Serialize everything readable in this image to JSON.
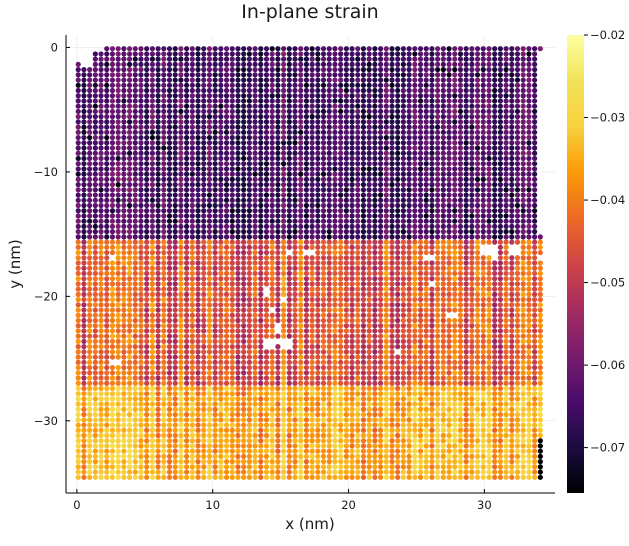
{
  "chart_data": {
    "type": "scatter",
    "title": "In-plane strain",
    "xlabel": "x (nm)",
    "ylabel": "y (nm)",
    "xlim": [
      -0.8,
      35.2
    ],
    "ylim": [
      -35.8,
      1.0
    ],
    "xticks": [
      0,
      10,
      20,
      30
    ],
    "yticks": [
      0,
      -10,
      -20,
      -30
    ],
    "xtick_labels": [
      "0",
      "10",
      "20",
      "30"
    ],
    "ytick_labels": [
      "0",
      "−10",
      "−20",
      "−30"
    ],
    "grid": true,
    "colormap": "inferno",
    "colorbar": {
      "range": [
        -0.0755,
        -0.02
      ],
      "ticks": [
        -0.07,
        -0.06,
        -0.05,
        -0.04,
        -0.03,
        -0.02
      ],
      "tick_labels": [
        "−0.07",
        "−0.06",
        "−0.05",
        "−0.04",
        "−0.03",
        "−0.02"
      ]
    },
    "point_grid": {
      "x_range": [
        0.1,
        34.2
      ],
      "y_range": [
        -34.7,
        -0.1
      ],
      "x_step": 0.42,
      "y_step": 0.42
    },
    "regions": [
      {
        "y_range": [
          -15.3,
          0
        ],
        "strain_typical": -0.065
      },
      {
        "y_range": [
          -27.0,
          -15.3
        ],
        "strain_typical": -0.045
      },
      {
        "y_range": [
          -35.0,
          -27.0
        ],
        "strain_typical": -0.035
      }
    ],
    "missing_points": [
      [
        2.6,
        -16.9
      ],
      [
        2.9,
        -25.2
      ],
      [
        13.9,
        -19.7
      ],
      [
        14.4,
        -21.2
      ],
      [
        14.7,
        -22.5
      ],
      [
        15.0,
        -23.7
      ],
      [
        15.5,
        -23.9
      ],
      [
        15.2,
        -20.2
      ],
      [
        14.1,
        -23.9
      ],
      [
        15.6,
        -16.6
      ],
      [
        17.1,
        -16.6
      ],
      [
        23.7,
        -24.4
      ],
      [
        25.9,
        -16.9
      ],
      [
        26.2,
        -19.1
      ],
      [
        27.6,
        -21.5
      ],
      [
        30.2,
        -16.2
      ],
      [
        30.8,
        -16.2
      ],
      [
        30.8,
        -16.9
      ],
      [
        32.3,
        -16.2
      ],
      [
        34.1,
        -16.9
      ]
    ]
  }
}
